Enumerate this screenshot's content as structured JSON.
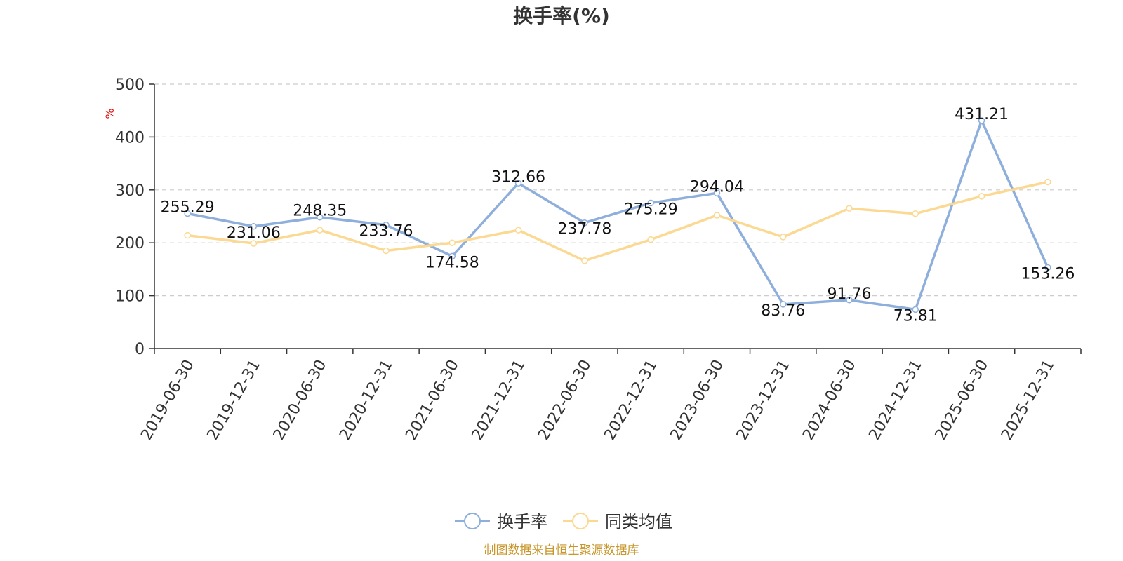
{
  "source_text": "制图数据来自恒生聚源数据库",
  "chart_data": {
    "type": "line",
    "title": "换手率(%)",
    "ylabel": "%",
    "ylim": [
      0,
      500
    ],
    "yticks": [
      0,
      100,
      200,
      300,
      400,
      500
    ],
    "grid": true,
    "legend_position": "bottom-center",
    "categories": [
      "2019-06-30",
      "2019-12-31",
      "2020-06-30",
      "2020-12-31",
      "2021-06-30",
      "2021-12-31",
      "2022-06-30",
      "2022-12-31",
      "2023-06-30",
      "2023-12-31",
      "2024-06-30",
      "2024-12-31",
      "2025-06-30",
      "2025-12-31"
    ],
    "series": [
      {
        "name": "换手率",
        "color": "#8eaedc",
        "show_labels": true,
        "values": [
          255.29,
          231.06,
          248.35,
          233.76,
          174.58,
          312.66,
          237.78,
          275.29,
          294.04,
          83.76,
          91.76,
          73.81,
          431.21,
          153.26
        ],
        "labels": [
          "255.29",
          "231.06",
          "248.35",
          "233.76",
          "174.58",
          "312.66",
          "237.78",
          "275.29",
          "294.04",
          "83.76",
          "91.76",
          "73.81",
          "431.21",
          "153.26"
        ]
      },
      {
        "name": "同类均值",
        "color": "#fbd992",
        "show_labels": false,
        "values": [
          214,
          199,
          224,
          185,
          200,
          224,
          166,
          206,
          252,
          211,
          265,
          255,
          288,
          315
        ]
      }
    ]
  }
}
